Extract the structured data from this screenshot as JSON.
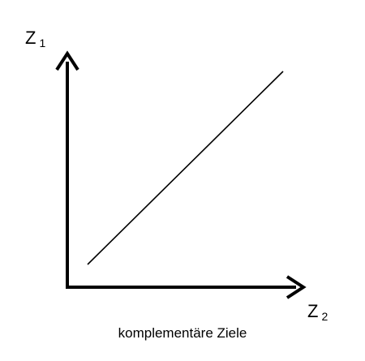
{
  "diagram": {
    "y_axis": {
      "letter": "Z",
      "subscript": "1"
    },
    "x_axis": {
      "letter": "Z",
      "subscript": "2"
    },
    "caption": "komplementäre Ziele",
    "line_color": "#000000",
    "relationship_line": {
      "direction": "increasing"
    }
  }
}
